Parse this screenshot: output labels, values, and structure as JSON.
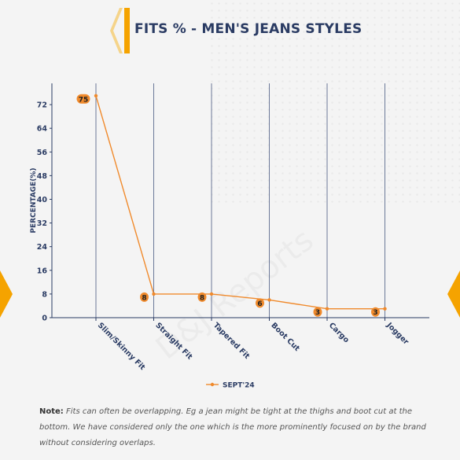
{
  "title": "FITS % - MEN'S JEANS STYLES",
  "note": {
    "label": "Note:",
    "text": "Fits can often be overlapping. Eg a jean might be tight at the thighs and boot cut at the bottom. We have considered only the one which is the more prominently focused on by the brand without considering overlaps."
  },
  "watermark": "D&J Reports",
  "colors": {
    "title": "#2a3b63",
    "accent": "#f5a300",
    "series": "#f08a2c",
    "axis": "#2a3b63",
    "grid": "#4a5a82"
  },
  "chart_data": {
    "type": "line",
    "categories": [
      "Slim/Skinny Fit",
      "Straight Fit",
      "Tapered Fit",
      "Boot Cut",
      "Cargo",
      "Jogger"
    ],
    "series": [
      {
        "name": "SEPT'24",
        "values": [
          75,
          8,
          8,
          6,
          3,
          3
        ]
      }
    ],
    "data_labels": [
      "75",
      "8",
      "8",
      "6",
      "3",
      "3"
    ],
    "ylabel": "PERCENTAGE(%)",
    "xlabel": "",
    "ylim": [
      0,
      76
    ],
    "yticks": [
      0,
      8,
      16,
      24,
      32,
      40,
      48,
      56,
      64,
      72
    ],
    "grid": "vertical",
    "legend": "bottom"
  }
}
